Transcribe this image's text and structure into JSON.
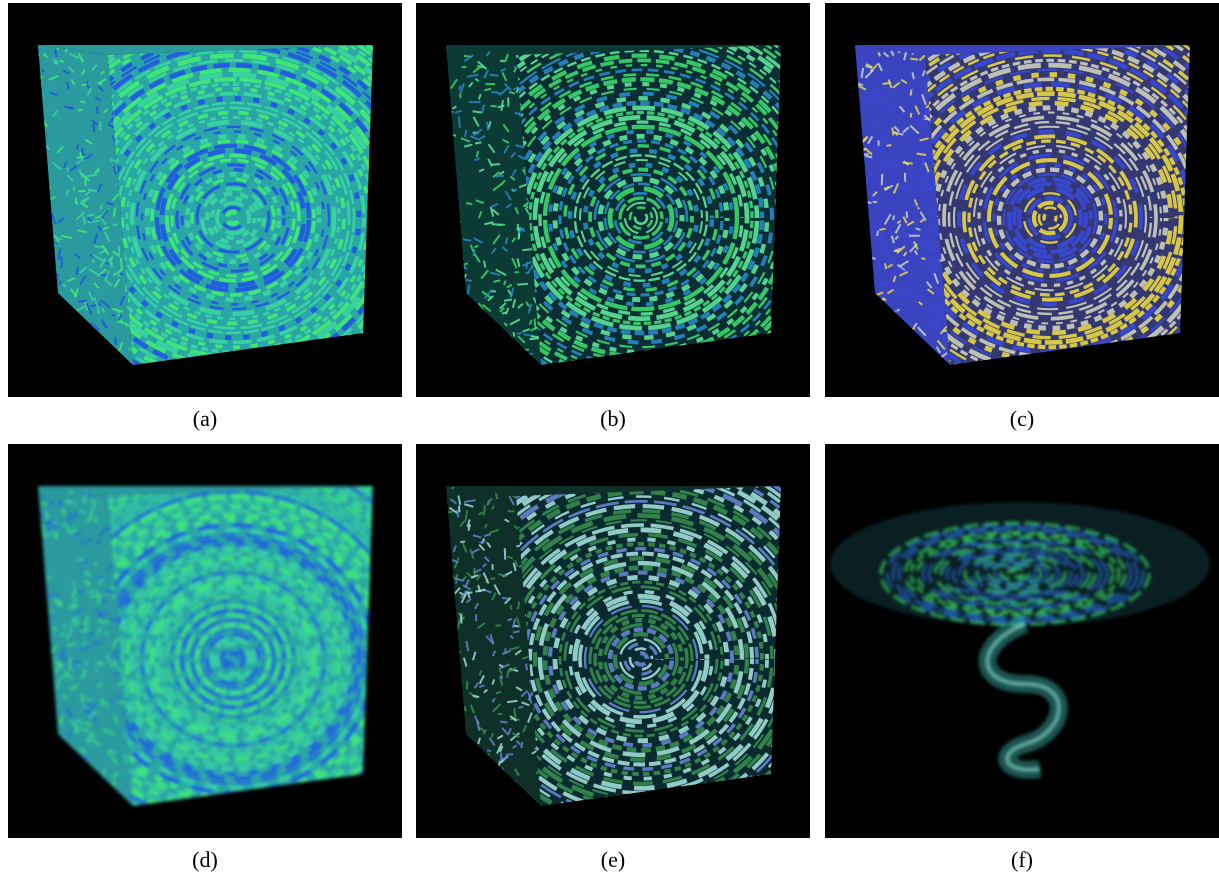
{
  "figure": {
    "panels": [
      {
        "caption": "(a)"
      },
      {
        "caption": "(b)"
      },
      {
        "caption": "(c)"
      },
      {
        "caption": "(d)"
      },
      {
        "caption": "(e)"
      },
      {
        "caption": "(f)"
      }
    ]
  }
}
